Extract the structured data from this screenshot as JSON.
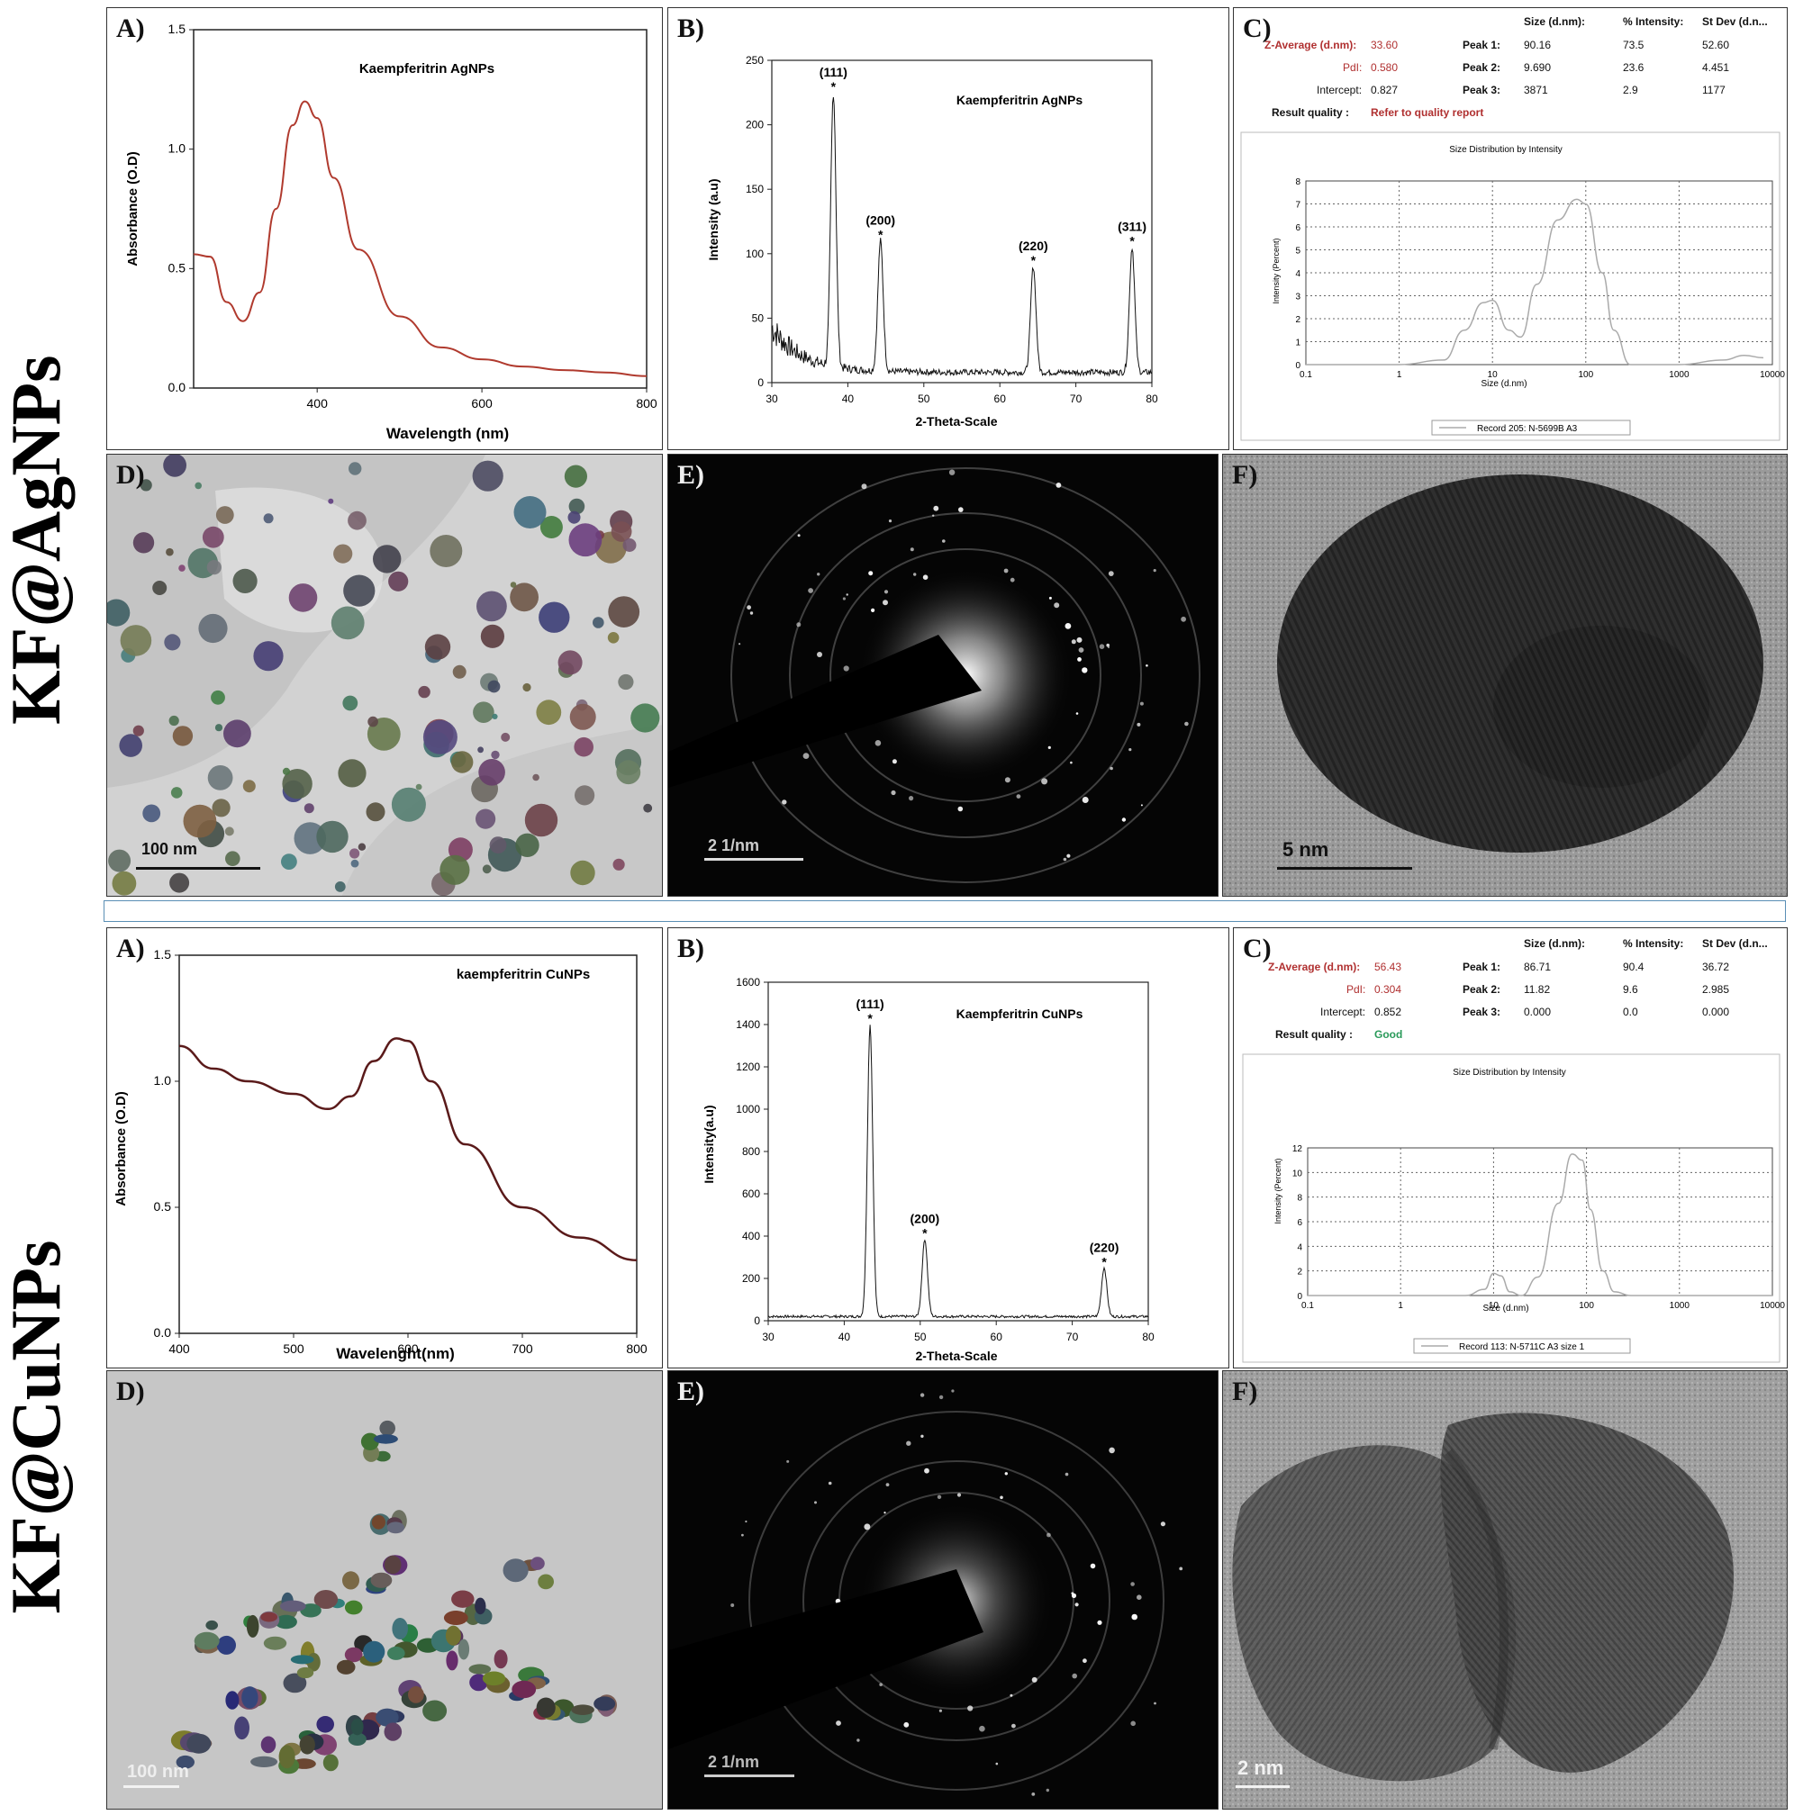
{
  "side_titles": {
    "top": "KF@AgNPs",
    "bottom": "KF@CuNPs"
  },
  "panel_labels": {
    "a": "A)",
    "b": "B)",
    "c": "C)",
    "d": "D)",
    "e": "E)",
    "f": "F)"
  },
  "ag": {
    "uv": {
      "title": "Kaempferitrin AgNPs",
      "xlabel": "Wavelength (nm)",
      "ylabel": "Absorbance (O.D)",
      "xticks": [
        "400",
        "600",
        "800"
      ],
      "yticks": [
        "0.0",
        "0.5",
        "1.0",
        "1.5"
      ]
    },
    "xrd": {
      "title": "Kaempferitrin AgNPs",
      "xlabel": "2-Theta-Scale",
      "ylabel": "Intensity (a.u)",
      "xticks": [
        "30",
        "40",
        "50",
        "60",
        "70",
        "80"
      ],
      "yticks": [
        "0",
        "50",
        "100",
        "150",
        "200",
        "250"
      ],
      "peaks": [
        "(111)",
        "(200)",
        "(220)",
        "(311)"
      ],
      "star": "*"
    },
    "dls": {
      "hdr_size": "Size (d.nm):",
      "hdr_int": "% Intensity:",
      "hdr_sd": "St Dev (d.n...",
      "zavg_label": "Z-Average (d.nm):",
      "zavg": "33.60",
      "pdi_label": "PdI:",
      "pdi": "0.580",
      "intercept_label": "Intercept:",
      "intercept": "0.827",
      "rq_label": "Result quality :",
      "rq": "Refer to quality report",
      "peak1": "Peak 1:",
      "p1s": "90.16",
      "p1i": "73.5",
      "p1d": "52.60",
      "peak2": "Peak 2:",
      "p2s": "9.690",
      "p2i": "23.6",
      "p2d": "4.451",
      "peak3": "Peak 3:",
      "p3s": "3871",
      "p3i": "2.9",
      "p3d": "1177",
      "chart_title": "Size Distribution by Intensity",
      "xlabel": "Size (d.nm)",
      "ylabel": "Intensity (Percent)",
      "xticks": [
        "0.1",
        "1",
        "10",
        "100",
        "1000",
        "10000"
      ],
      "yticks": [
        "0",
        "1",
        "2",
        "3",
        "4",
        "5",
        "6",
        "7",
        "8"
      ],
      "legend": "Record 205: N-5699B A3"
    },
    "tem_scale": "100 nm",
    "saed_scale": "2 1/nm",
    "hrtem_scale": "5 nm"
  },
  "cu": {
    "uv": {
      "title": "kaempferitrin CuNPs",
      "xlabel": "Wavelenght(nm)",
      "ylabel": "Absorbance (O.D)",
      "xticks": [
        "400",
        "500",
        "600",
        "700",
        "800"
      ],
      "yticks": [
        "0.0",
        "0.5",
        "1.0",
        "1.5"
      ]
    },
    "xrd": {
      "title": "Kaempferitrin CuNPs",
      "xlabel": "2-Theta-Scale",
      "ylabel": "Intensity(a.u)",
      "xticks": [
        "30",
        "40",
        "50",
        "60",
        "70",
        "80"
      ],
      "yticks": [
        "0",
        "200",
        "400",
        "600",
        "800",
        "1000",
        "1200",
        "1400",
        "1600"
      ],
      "peaks": [
        "(111)",
        "(200)",
        "(220)"
      ],
      "star": "*"
    },
    "dls": {
      "hdr_size": "Size (d.nm):",
      "hdr_int": "% Intensity:",
      "hdr_sd": "St Dev (d.n...",
      "zavg_label": "Z-Average (d.nm):",
      "zavg": "56.43",
      "pdi_label": "PdI:",
      "pdi": "0.304",
      "intercept_label": "Intercept:",
      "intercept": "0.852",
      "rq_label": "Result quality :",
      "rq": "Good",
      "peak1": "Peak 1:",
      "p1s": "86.71",
      "p1i": "90.4",
      "p1d": "36.72",
      "peak2": "Peak 2:",
      "p2s": "11.82",
      "p2i": "9.6",
      "p2d": "2.985",
      "peak3": "Peak 3:",
      "p3s": "0.000",
      "p3i": "0.0",
      "p3d": "0.000",
      "chart_title": "Size Distribution by Intensity",
      "xlabel": "Size (d.nm)",
      "ylabel": "Intensity (Percent)",
      "xticks": [
        "0.1",
        "1",
        "10",
        "100",
        "1000",
        "10000"
      ],
      "yticks": [
        "0",
        "2",
        "4",
        "6",
        "8",
        "10",
        "12"
      ],
      "legend": "Record 113: N-5711C A3 size 1"
    },
    "tem_scale": "100 nm",
    "saed_scale": "2 1/nm",
    "hrtem_scale": "2 nm"
  },
  "chart_data": [
    {
      "type": "line",
      "id": "ag-uv",
      "x": [
        250,
        270,
        290,
        310,
        330,
        350,
        370,
        385,
        400,
        420,
        450,
        500,
        550,
        600,
        650,
        700,
        750,
        800
      ],
      "y": [
        0.56,
        0.55,
        0.36,
        0.28,
        0.4,
        0.75,
        1.1,
        1.2,
        1.13,
        0.88,
        0.58,
        0.3,
        0.17,
        0.12,
        0.09,
        0.075,
        0.065,
        0.05
      ],
      "xlim": [
        250,
        800
      ],
      "ylim": [
        0,
        1.5
      ],
      "color": "#b03a2e"
    },
    {
      "type": "line",
      "id": "ag-xrd",
      "peaks_x": [
        38.1,
        44.3,
        64.4,
        77.4
      ],
      "peaks_y": [
        225,
        110,
        90,
        105
      ],
      "baseline_start": 45,
      "xlim": [
        30,
        80
      ],
      "ylim": [
        0,
        250
      ]
    },
    {
      "type": "line",
      "id": "ag-dls",
      "x": [
        0.1,
        1,
        3,
        5,
        8,
        10,
        15,
        20,
        30,
        50,
        80,
        100,
        150,
        200,
        300,
        1000,
        3000,
        5000,
        8000
      ],
      "y": [
        0,
        0,
        0.2,
        1.5,
        2.7,
        2.8,
        1.5,
        1.2,
        3.5,
        6.3,
        7.2,
        7.0,
        4.0,
        1.5,
        0,
        0,
        0.2,
        0.4,
        0.3
      ],
      "xlim": [
        0.1,
        10000
      ],
      "ylim": [
        0,
        8
      ]
    },
    {
      "type": "line",
      "id": "cu-uv",
      "x": [
        400,
        430,
        460,
        500,
        530,
        550,
        570,
        590,
        600,
        620,
        650,
        700,
        750,
        800
      ],
      "y": [
        1.14,
        1.05,
        1.0,
        0.95,
        0.89,
        0.94,
        1.08,
        1.17,
        1.16,
        1.0,
        0.75,
        0.5,
        0.38,
        0.29
      ],
      "xlim": [
        400,
        800
      ],
      "ylim": [
        0,
        1.5
      ],
      "color": "#5a1a1a"
    },
    {
      "type": "line",
      "id": "cu-xrd",
      "peaks_x": [
        43.4,
        50.6,
        74.2
      ],
      "peaks_y": [
        1400,
        385,
        250
      ],
      "baseline": 20,
      "xlim": [
        30,
        80
      ],
      "ylim": [
        0,
        1600
      ]
    },
    {
      "type": "line",
      "id": "cu-dls",
      "x": [
        0.1,
        5,
        8,
        10,
        12,
        15,
        20,
        30,
        50,
        70,
        90,
        110,
        150,
        200,
        300,
        10000
      ],
      "y": [
        0,
        0,
        0.5,
        1.8,
        1.6,
        0.3,
        0,
        1.5,
        7.5,
        11.5,
        11.0,
        7.0,
        2.0,
        0.3,
        0,
        0
      ],
      "xlim": [
        0.1,
        10000
      ],
      "ylim": [
        0,
        12
      ]
    }
  ]
}
